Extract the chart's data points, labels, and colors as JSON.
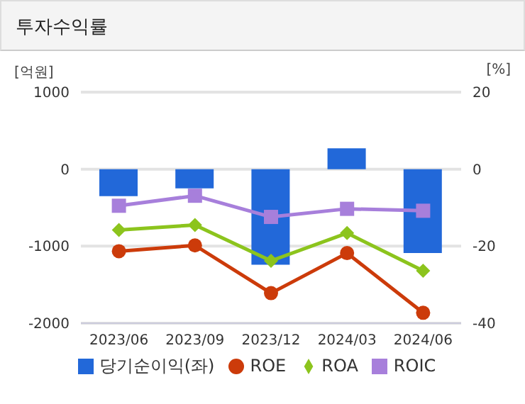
{
  "chart_data": {
    "type": "bar",
    "title": "투자수익률",
    "ylabel": "[억원]",
    "y2label": "[%]",
    "categories": [
      "2023/06",
      "2023/09",
      "2023/12",
      "2024/03",
      "2024/06"
    ],
    "series": [
      {
        "name": "당기순이익(좌)",
        "color": "#2268d9",
        "values": [
          -350,
          -250,
          -1240,
          270,
          -1090
        ]
      },
      {
        "name": "ROE",
        "type": "line",
        "axis": "y2",
        "marker": "circle",
        "color": "#cc3b0a",
        "values": [
          -21.3,
          -19.8,
          -32.2,
          -21.8,
          -37.3
        ]
      },
      {
        "name": "ROA",
        "type": "line",
        "axis": "y2",
        "marker": "diamond",
        "color": "#8cc41d",
        "values": [
          -15.8,
          -14.5,
          -23.8,
          -16.6,
          -26.4
        ]
      },
      {
        "name": "ROIC",
        "type": "line",
        "axis": "y2",
        "marker": "square",
        "color": "#a77fdb",
        "values": [
          -9.5,
          -6.9,
          -12.4,
          -10.3,
          -10.8
        ]
      }
    ],
    "ylim": [
      -2000,
      1000
    ],
    "yticks": [
      -2000,
      -1000,
      0,
      1000
    ],
    "y2lim": [
      -40,
      20
    ],
    "y2ticks": [
      -40,
      -20,
      0,
      20
    ],
    "grid": "y",
    "legend": "bottom"
  }
}
